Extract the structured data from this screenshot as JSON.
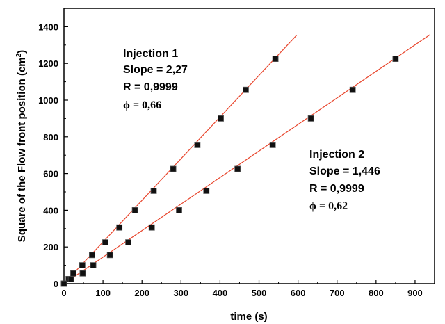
{
  "chart_data": {
    "type": "scatter",
    "xlabel": "time (s)",
    "ylabel": "Square of the Flow front position (cm",
    "ylabel_unit_sup": "2",
    "ylabel_close": ")",
    "xlim": [
      0,
      950
    ],
    "ylim": [
      0,
      1500
    ],
    "x_ticks": [
      0,
      100,
      200,
      300,
      400,
      500,
      600,
      700,
      800,
      900
    ],
    "y_ticks": [
      0,
      200,
      400,
      600,
      800,
      1000,
      1200,
      1400
    ],
    "line_color": "#e8452c",
    "marker_color": "#111111",
    "series": [
      {
        "points": [
          {
            "x": 0,
            "y": 0
          },
          {
            "x": 12,
            "y": 25
          },
          {
            "x": 24,
            "y": 56
          },
          {
            "x": 47,
            "y": 100
          },
          {
            "x": 72,
            "y": 156
          },
          {
            "x": 106,
            "y": 225
          },
          {
            "x": 142,
            "y": 306
          },
          {
            "x": 182,
            "y": 400
          },
          {
            "x": 230,
            "y": 506
          },
          {
            "x": 280,
            "y": 625
          },
          {
            "x": 342,
            "y": 756
          },
          {
            "x": 402,
            "y": 900
          },
          {
            "x": 466,
            "y": 1056
          },
          {
            "x": 542,
            "y": 1225
          }
        ],
        "fit": {
          "x0": 0,
          "y0": 0,
          "x1": 597,
          "y1": 1355
        }
      },
      {
        "points": [
          {
            "x": 0,
            "y": 0
          },
          {
            "x": 18,
            "y": 25
          },
          {
            "x": 48,
            "y": 56
          },
          {
            "x": 75,
            "y": 100
          },
          {
            "x": 118,
            "y": 156
          },
          {
            "x": 165,
            "y": 225
          },
          {
            "x": 225,
            "y": 306
          },
          {
            "x": 295,
            "y": 400
          },
          {
            "x": 365,
            "y": 506
          },
          {
            "x": 445,
            "y": 625
          },
          {
            "x": 535,
            "y": 756
          },
          {
            "x": 633,
            "y": 900
          },
          {
            "x": 740,
            "y": 1056
          },
          {
            "x": 850,
            "y": 1225
          }
        ],
        "fit": {
          "x0": 0,
          "y0": 0,
          "x1": 938,
          "y1": 1356
        }
      }
    ],
    "annotations": [
      {
        "lines": [
          "Injection 1",
          "Slope = 2,27",
          "R = 0,9999"
        ],
        "phi": "ϕ = 0,66"
      },
      {
        "lines": [
          "Injection 2",
          "Slope = 1,446",
          "R = 0,9999"
        ],
        "phi": "ϕ = 0,62"
      }
    ]
  }
}
